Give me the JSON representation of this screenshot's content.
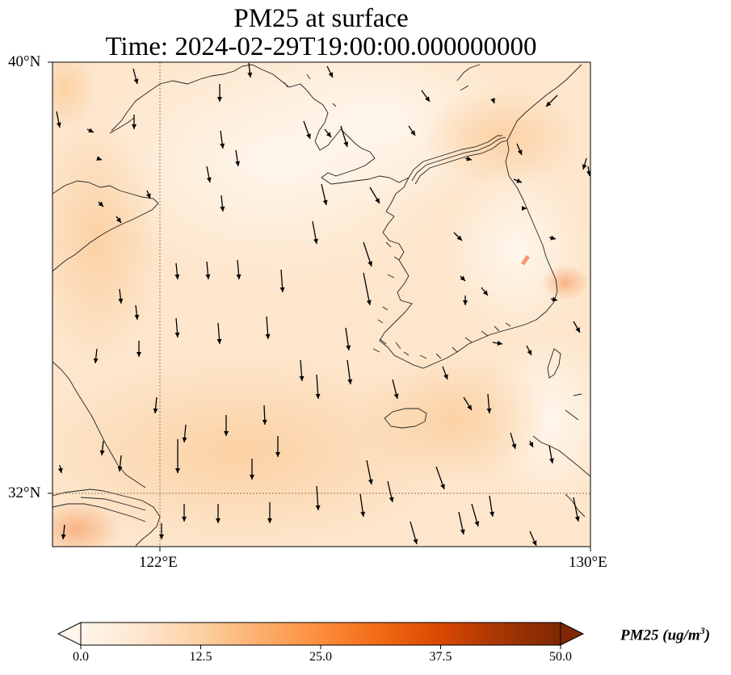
{
  "title": {
    "line1": "PM25 at surface",
    "line2": "Time: 2024-02-29T19:00:00.000000000"
  },
  "map": {
    "extent": {
      "lon_min": 120.0,
      "lon_max": 130.0,
      "lat_min": 31.0,
      "lat_max": 40.0
    },
    "y_ticks": [
      {
        "label": "40°N",
        "lat": 40
      },
      {
        "label": "32°N",
        "lat": 32
      }
    ],
    "x_ticks": [
      {
        "label": "122°E",
        "lon": 122
      },
      {
        "label": "130°E",
        "lon": 130
      }
    ],
    "gridlines": {
      "lon": 122,
      "lat": 32,
      "style": "dotted"
    },
    "field_colors": {
      "background": "#fde9d3",
      "clean": "#fff4e8",
      "moderate": "#fcd3a8",
      "high": "#f9b585",
      "hotspot": "#f7996a"
    },
    "coastline_color": "#222222",
    "wind_vectors": "southward, shown as black arrows"
  },
  "colorbar": {
    "ticks": [
      "0.0",
      "12.5",
      "25.0",
      "37.5",
      "50.0"
    ],
    "min": 0.0,
    "max": 50.0,
    "label": "PM25 (ug/m",
    "label_superscript": "3",
    "label_close": ")",
    "colors": [
      "#fff5eb",
      "#fee6ce",
      "#fdd0a2",
      "#fdae6b",
      "#fd8d3c",
      "#f16913",
      "#d94801",
      "#a63603",
      "#7f2704"
    ]
  }
}
